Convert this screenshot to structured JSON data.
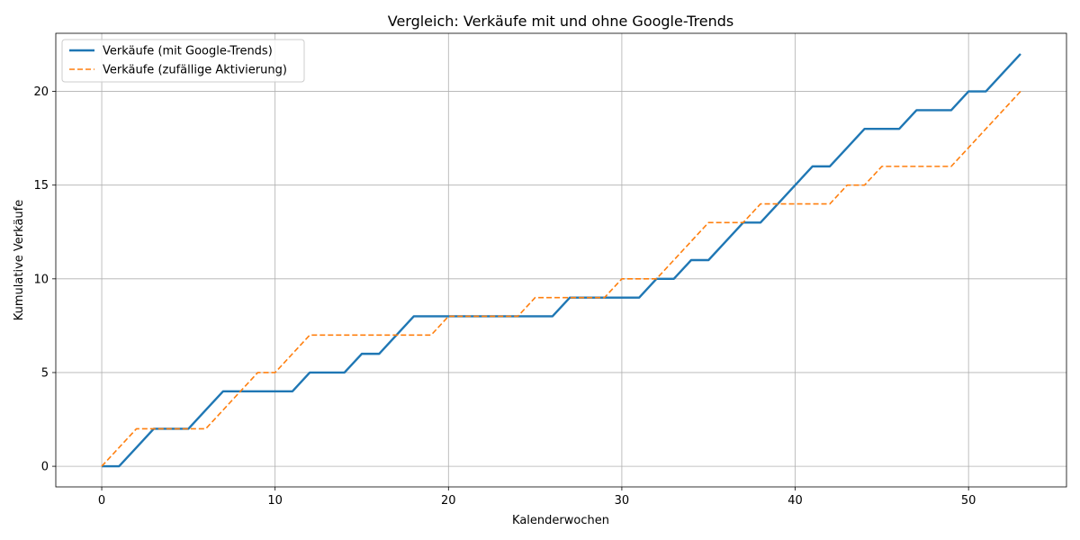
{
  "chart_data": {
    "type": "line",
    "title": "Vergleich: Verkäufe mit und ohne Google-Trends",
    "xlabel": "Kalenderwochen",
    "ylabel": "Kumulative Verkäufe",
    "xlim": [
      -2.65,
      55.65
    ],
    "ylim": [
      -1.1,
      23.1
    ],
    "xticks": [
      0,
      10,
      20,
      30,
      40,
      50
    ],
    "yticks": [
      0,
      5,
      10,
      15,
      20
    ],
    "grid": true,
    "legend_position": "top-left",
    "x": [
      0,
      1,
      2,
      3,
      4,
      5,
      6,
      7,
      8,
      9,
      10,
      11,
      12,
      13,
      14,
      15,
      16,
      17,
      18,
      19,
      20,
      21,
      22,
      23,
      24,
      25,
      26,
      27,
      28,
      29,
      30,
      31,
      32,
      33,
      34,
      35,
      36,
      37,
      38,
      39,
      40,
      41,
      42,
      43,
      44,
      45,
      46,
      47,
      48,
      49,
      50,
      51,
      52,
      53
    ],
    "series": [
      {
        "name": "Verkäufe (mit Google-Trends)",
        "color": "#1f77b4",
        "style": "solid",
        "values": [
          0,
          0,
          1,
          2,
          2,
          2,
          3,
          4,
          4,
          4,
          4,
          4,
          5,
          5,
          5,
          6,
          6,
          7,
          8,
          8,
          8,
          8,
          8,
          8,
          8,
          8,
          8,
          9,
          9,
          9,
          9,
          9,
          10,
          10,
          11,
          11,
          12,
          13,
          13,
          14,
          15,
          16,
          16,
          17,
          18,
          18,
          18,
          19,
          19,
          19,
          20,
          20,
          21,
          22
        ]
      },
      {
        "name": "Verkäufe (zufällige Aktivierung)",
        "color": "#ff7f0e",
        "style": "dashed",
        "values": [
          0,
          1,
          2,
          2,
          2,
          2,
          2,
          3,
          4,
          5,
          5,
          6,
          7,
          7,
          7,
          7,
          7,
          7,
          7,
          7,
          8,
          8,
          8,
          8,
          8,
          9,
          9,
          9,
          9,
          9,
          10,
          10,
          10,
          11,
          12,
          13,
          13,
          13,
          14,
          14,
          14,
          14,
          14,
          15,
          15,
          16,
          16,
          16,
          16,
          16,
          17,
          18,
          19,
          20
        ]
      }
    ],
    "grid_color": "#b0b0b0",
    "axis_color": "#000000"
  }
}
